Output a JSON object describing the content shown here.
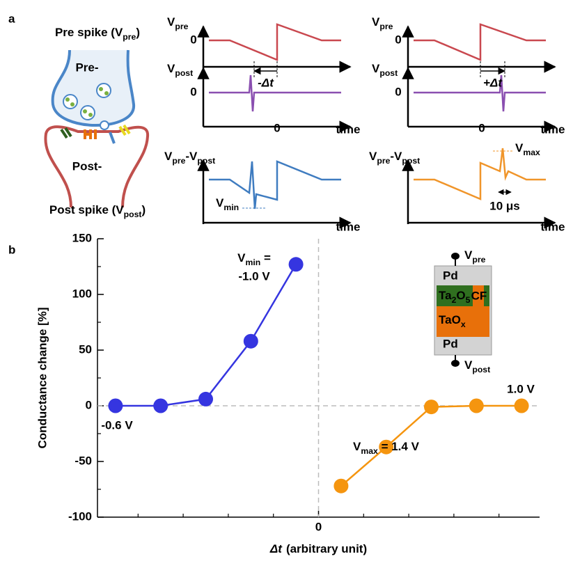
{
  "panel_a": {
    "label": "a",
    "synapse": {
      "pre_spike": [
        "Pre spike (V",
        "pre",
        ")"
      ],
      "pre": "Pre-",
      "post": "Post-",
      "post_spike": [
        "Post spike (V",
        "post",
        ")"
      ]
    },
    "waveforms": [
      {
        "v_pre": [
          "V",
          "pre"
        ],
        "pre_zero": "0",
        "v_post": [
          "V",
          "post"
        ],
        "post_zero": "0",
        "time_zero": "0",
        "time": "time",
        "delta": "-Δt"
      },
      {
        "v_pre": [
          "V",
          "pre"
        ],
        "pre_zero": "0",
        "v_post": [
          "V",
          "post"
        ],
        "post_zero": "0",
        "time_zero": "0",
        "time": "time",
        "delta": "+Δt"
      }
    ],
    "differences": [
      {
        "label": [
          "V",
          "pre",
          "-V",
          "post"
        ],
        "extreme": [
          "V",
          "min"
        ],
        "time": "time"
      },
      {
        "label": [
          "V",
          "pre",
          "-V",
          "post"
        ],
        "extreme": [
          "V",
          "max"
        ],
        "duration": "10 μs",
        "time": "time"
      }
    ]
  },
  "chart_data": {
    "type": "line",
    "panel_label": "b",
    "ylabel": "Conductance change [%]",
    "xlabel_symbol": "Δt",
    "xlabel": "(arbitrary unit)",
    "xlim": [
      -4.9,
      4.9
    ],
    "ylim": [
      -100,
      150
    ],
    "xticks": [
      0
    ],
    "xminorticks": [
      -4,
      -3,
      -2,
      -1,
      1,
      2,
      3,
      4
    ],
    "yticks": [
      -100,
      -50,
      0,
      50,
      100,
      150
    ],
    "yminorticks": [
      -75,
      -25,
      25,
      75,
      125
    ],
    "zero_lines": true,
    "series": [
      {
        "color": "#3535e0",
        "x": [
          -4.5,
          -3.5,
          -2.5,
          -1.5,
          -0.5
        ],
        "values": [
          0,
          0,
          6,
          58,
          127
        ]
      },
      {
        "color": "#f5950f",
        "x": [
          0.5,
          1.5,
          2.5,
          3.5,
          4.5
        ],
        "values": [
          -72,
          -37,
          -1,
          0,
          0
        ]
      }
    ],
    "annotations": [
      {
        "text": [
          "V",
          "min",
          " ="
        ],
        "color": "#3a6fb4"
      },
      {
        "text": "-1.0 V",
        "color": "#3a6fb4"
      },
      {
        "text": "-0.6 V",
        "color": "#3a6fb4"
      },
      {
        "text": "1.0 V",
        "color": "#e88a12"
      },
      {
        "text": [
          "V",
          "max",
          " = 1.4 V"
        ],
        "color": "#e88a12"
      }
    ],
    "inset": {
      "top": "Pd",
      "oxide": [
        "Ta",
        "2",
        "O",
        "5"
      ],
      "filament": "CF",
      "base": [
        "TaO",
        "x"
      ],
      "bottom": "Pd",
      "v_top": [
        "V",
        "pre"
      ],
      "v_bottom": [
        "V",
        "post"
      ]
    }
  }
}
